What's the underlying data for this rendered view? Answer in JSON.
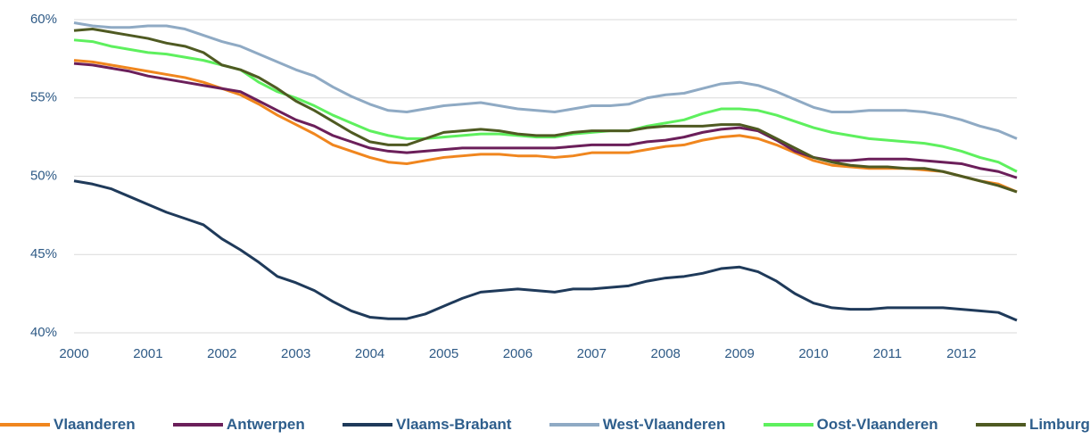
{
  "chart_data": {
    "type": "line",
    "x": [
      2000,
      2000.25,
      2000.5,
      2000.75,
      2001,
      2001.25,
      2001.5,
      2001.75,
      2002,
      2002.25,
      2002.5,
      2002.75,
      2003,
      2003.25,
      2003.5,
      2003.75,
      2004,
      2004.25,
      2004.5,
      2004.75,
      2005,
      2005.25,
      2005.5,
      2005.75,
      2006,
      2006.25,
      2006.5,
      2006.75,
      2007,
      2007.25,
      2007.5,
      2007.75,
      2008,
      2008.25,
      2008.5,
      2008.75,
      2009,
      2009.25,
      2009.5,
      2009.75,
      2010,
      2010.25,
      2010.5,
      2010.75,
      2011,
      2011.25,
      2011.5,
      2011.75,
      2012,
      2012.25,
      2012.5,
      2012.75
    ],
    "xlim": [
      2000,
      2012.75
    ],
    "xticks": [
      2000,
      2001,
      2002,
      2003,
      2004,
      2005,
      2006,
      2007,
      2008,
      2009,
      2010,
      2011,
      2012
    ],
    "ylim": [
      40,
      60
    ],
    "yticks": [
      {
        "value": 40,
        "label": "40%"
      },
      {
        "value": 45,
        "label": "45%"
      },
      {
        "value": 50,
        "label": "50%"
      },
      {
        "value": 55,
        "label": "55%"
      },
      {
        "value": 60,
        "label": "60%"
      }
    ],
    "grid": true,
    "legend": "bottom",
    "series": [
      {
        "name": "Vlaanderen",
        "color": "#f0861e",
        "values": [
          57.4,
          57.3,
          57.1,
          56.9,
          56.7,
          56.5,
          56.3,
          56.0,
          55.6,
          55.2,
          54.6,
          53.9,
          53.3,
          52.7,
          52.0,
          51.6,
          51.2,
          50.9,
          50.8,
          51.0,
          51.2,
          51.3,
          51.4,
          51.4,
          51.3,
          51.3,
          51.2,
          51.3,
          51.5,
          51.5,
          51.5,
          51.7,
          51.9,
          52.0,
          52.3,
          52.5,
          52.6,
          52.4,
          52.0,
          51.5,
          51.0,
          50.7,
          50.6,
          50.5,
          50.5,
          50.5,
          50.4,
          50.3,
          50.0,
          49.7,
          49.5,
          49.0
        ]
      },
      {
        "name": "Antwerpen",
        "color": "#6b1f5a",
        "values": [
          57.2,
          57.1,
          56.9,
          56.7,
          56.4,
          56.2,
          56.0,
          55.8,
          55.6,
          55.4,
          54.8,
          54.2,
          53.6,
          53.2,
          52.6,
          52.2,
          51.8,
          51.6,
          51.5,
          51.6,
          51.7,
          51.8,
          51.8,
          51.8,
          51.8,
          51.8,
          51.8,
          51.9,
          52.0,
          52.0,
          52.0,
          52.2,
          52.3,
          52.5,
          52.8,
          53.0,
          53.1,
          52.9,
          52.3,
          51.6,
          51.2,
          51.0,
          51.0,
          51.1,
          51.1,
          51.1,
          51.0,
          50.9,
          50.8,
          50.5,
          50.3,
          49.9
        ]
      },
      {
        "name": "Vlaams-Brabant",
        "color": "#1f3a5a",
        "values": [
          49.7,
          49.5,
          49.2,
          48.7,
          48.2,
          47.7,
          47.3,
          46.9,
          46.0,
          45.3,
          44.5,
          43.6,
          43.2,
          42.7,
          42.0,
          41.4,
          41.0,
          40.9,
          40.9,
          41.2,
          41.7,
          42.2,
          42.6,
          42.7,
          42.8,
          42.7,
          42.6,
          42.8,
          42.8,
          42.9,
          43.0,
          43.3,
          43.5,
          43.6,
          43.8,
          44.1,
          44.2,
          43.9,
          43.3,
          42.5,
          41.9,
          41.6,
          41.5,
          41.5,
          41.6,
          41.6,
          41.6,
          41.6,
          41.5,
          41.4,
          41.3,
          40.8
        ]
      },
      {
        "name": "West-Vlaanderen",
        "color": "#8faac4",
        "values": [
          59.8,
          59.6,
          59.5,
          59.5,
          59.6,
          59.6,
          59.4,
          59.0,
          58.6,
          58.3,
          57.8,
          57.3,
          56.8,
          56.4,
          55.7,
          55.1,
          54.6,
          54.2,
          54.1,
          54.3,
          54.5,
          54.6,
          54.7,
          54.5,
          54.3,
          54.2,
          54.1,
          54.3,
          54.5,
          54.5,
          54.6,
          55.0,
          55.2,
          55.3,
          55.6,
          55.9,
          56.0,
          55.8,
          55.4,
          54.9,
          54.4,
          54.1,
          54.1,
          54.2,
          54.2,
          54.2,
          54.1,
          53.9,
          53.6,
          53.2,
          52.9,
          52.4
        ]
      },
      {
        "name": "Oost-Vlaanderen",
        "color": "#5ef05e",
        "values": [
          58.7,
          58.6,
          58.3,
          58.1,
          57.9,
          57.8,
          57.6,
          57.4,
          57.1,
          56.8,
          56.0,
          55.4,
          55.0,
          54.5,
          53.9,
          53.4,
          52.9,
          52.6,
          52.4,
          52.4,
          52.5,
          52.6,
          52.7,
          52.7,
          52.6,
          52.5,
          52.5,
          52.7,
          52.8,
          52.9,
          52.9,
          53.2,
          53.4,
          53.6,
          54.0,
          54.3,
          54.3,
          54.2,
          53.9,
          53.5,
          53.1,
          52.8,
          52.6,
          52.4,
          52.3,
          52.2,
          52.1,
          51.9,
          51.6,
          51.2,
          50.9,
          50.3
        ]
      },
      {
        "name": "Limburg",
        "color": "#4f5a22",
        "values": [
          59.3,
          59.4,
          59.2,
          59.0,
          58.8,
          58.5,
          58.3,
          57.9,
          57.1,
          56.8,
          56.3,
          55.6,
          54.8,
          54.2,
          53.5,
          52.8,
          52.2,
          52.0,
          52.0,
          52.4,
          52.8,
          52.9,
          53.0,
          52.9,
          52.7,
          52.6,
          52.6,
          52.8,
          52.9,
          52.9,
          52.9,
          53.1,
          53.2,
          53.2,
          53.2,
          53.3,
          53.3,
          53.0,
          52.4,
          51.8,
          51.2,
          50.9,
          50.7,
          50.6,
          50.6,
          50.5,
          50.5,
          50.3,
          50.0,
          49.7,
          49.4,
          49.0
        ]
      }
    ]
  }
}
